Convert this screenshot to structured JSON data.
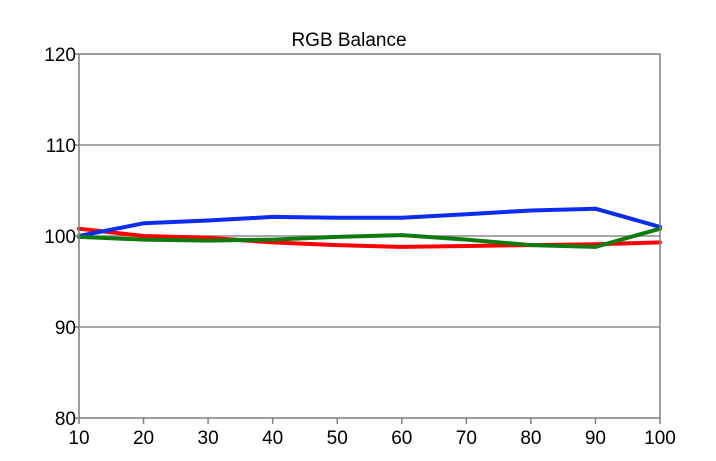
{
  "chart_data": {
    "type": "line",
    "title": "RGB Balance",
    "xlabel": "",
    "ylabel": "",
    "x": [
      10,
      20,
      30,
      40,
      50,
      60,
      70,
      80,
      90,
      100
    ],
    "xlim": [
      10,
      100
    ],
    "ylim": [
      80,
      120
    ],
    "xticks": [
      "10",
      "20",
      "30",
      "40",
      "50",
      "60",
      "70",
      "80",
      "90",
      "100"
    ],
    "yticks": [
      "120",
      "110",
      "100",
      "90",
      "80"
    ],
    "grid": "horizontal",
    "legend": "none",
    "series": [
      {
        "color": "#ff0000",
        "values": [
          100.8,
          100.0,
          99.8,
          99.3,
          99.0,
          98.8,
          98.9,
          99.0,
          99.1,
          99.3
        ]
      },
      {
        "color": "#0a2df0",
        "values": [
          100.0,
          101.4,
          101.7,
          102.1,
          102.0,
          102.0,
          102.4,
          102.8,
          103.0,
          101.0
        ]
      },
      {
        "color": "#0f7a0f",
        "values": [
          99.9,
          99.6,
          99.5,
          99.6,
          99.9,
          100.1,
          99.6,
          99.0,
          98.8,
          100.8
        ]
      }
    ]
  }
}
